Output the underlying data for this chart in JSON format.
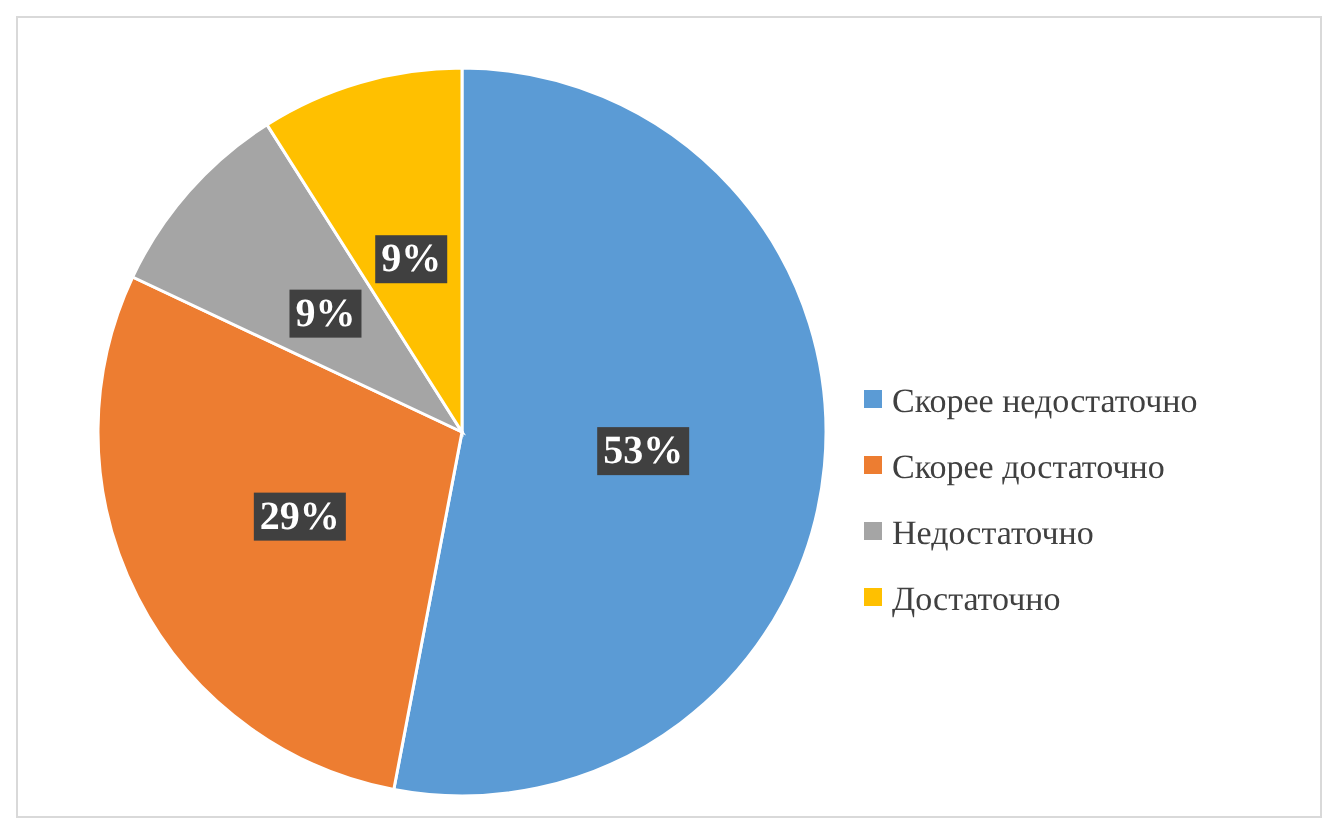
{
  "chart_data": {
    "type": "pie",
    "categories": [
      "Скорее недостаточно",
      "Скорее достаточно",
      "Недостаточно",
      "Достаточно"
    ],
    "values": [
      53,
      29,
      9,
      9
    ],
    "colors": [
      "#5b9bd5",
      "#ed7d31",
      "#a5a5a5",
      "#ffc000"
    ],
    "value_labels": [
      "53%",
      "29%",
      "9%",
      "9%"
    ],
    "legend": "right"
  }
}
